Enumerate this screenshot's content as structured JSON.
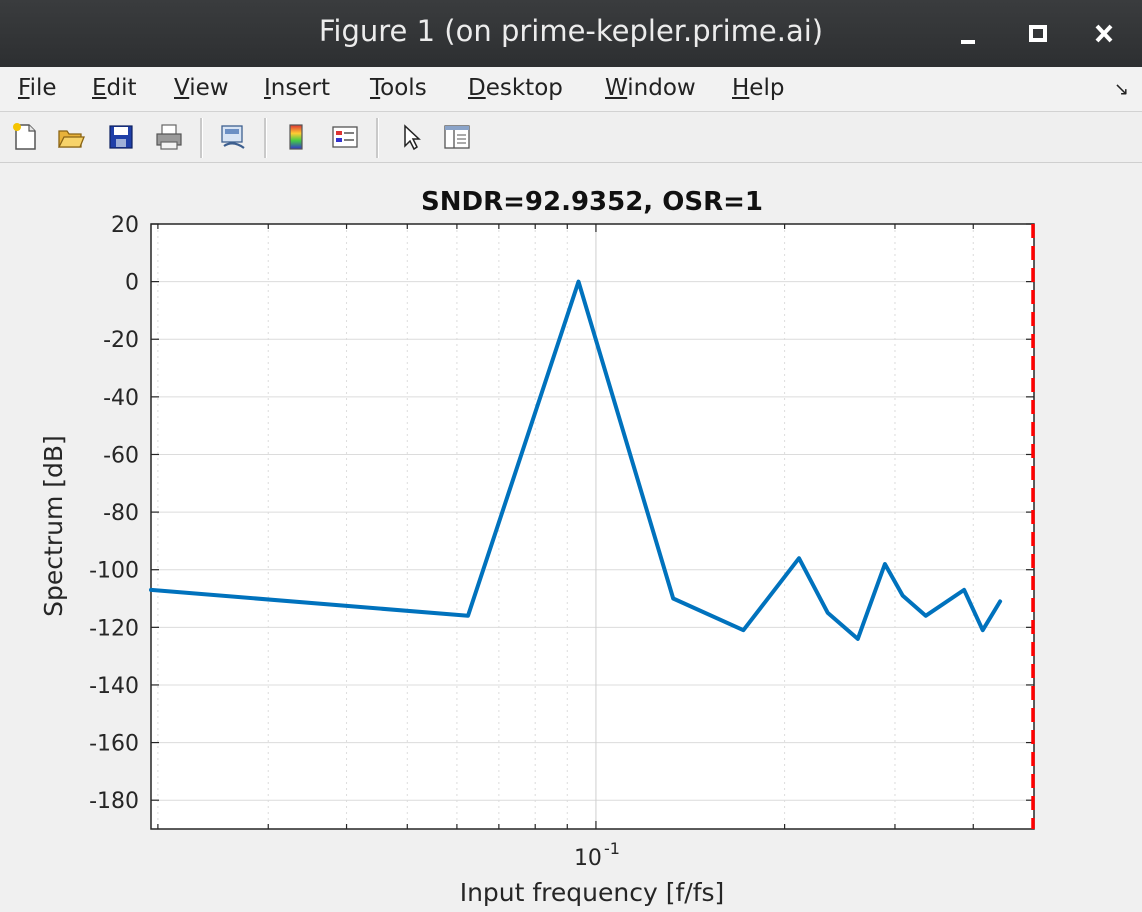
{
  "window": {
    "title": "Figure 1 (on prime-kepler.prime.ai)",
    "controls": {
      "minimize": "_",
      "maximize": "▫",
      "close": "✕"
    }
  },
  "menubar": {
    "items": [
      {
        "label": "File",
        "mnemonic": "F",
        "rest": "ile"
      },
      {
        "label": "Edit",
        "mnemonic": "E",
        "rest": "dit"
      },
      {
        "label": "View",
        "mnemonic": "V",
        "rest": "iew"
      },
      {
        "label": "Insert",
        "mnemonic": "I",
        "rest": "nsert"
      },
      {
        "label": "Tools",
        "mnemonic": "T",
        "rest": "ools"
      },
      {
        "label": "Desktop",
        "mnemonic": "D",
        "rest": "esktop"
      },
      {
        "label": "Window",
        "mnemonic": "W",
        "rest": "indow"
      },
      {
        "label": "Help",
        "mnemonic": "H",
        "rest": "elp"
      }
    ],
    "dock_arrow": "↘"
  },
  "toolbar": {
    "buttons": [
      "new-figure-icon",
      "open-file-icon",
      "save-icon",
      "print-icon",
      "link-plot-icon",
      "colorbar-icon",
      "legend-icon",
      "pointer-icon",
      "property-editor-icon"
    ]
  },
  "colors": {
    "line": "#0072bd",
    "marker_line": "#ff0000",
    "grid": "#dcdcdc",
    "axes_bg": "#ffffff"
  },
  "chart_data": {
    "type": "line",
    "title": "SNDR=92.9352, OSR=1",
    "xlabel": "Input frequency [f/fs]",
    "ylabel": "Spectrum [dB]",
    "xscale": "log",
    "xlim": [
      0.0195,
      0.5
    ],
    "ylim": [
      -190,
      20
    ],
    "yticks": [
      20,
      0,
      -20,
      -40,
      -60,
      -80,
      -100,
      -120,
      -140,
      -160,
      -180
    ],
    "xtick_label": {
      "base": "10",
      "exponent": "-1",
      "value": 0.1
    },
    "grid": true,
    "series": [
      {
        "x": [
          0.0195,
          0.0625,
          0.0938,
          0.1328,
          0.1719,
          0.2109,
          0.2344,
          0.2617,
          0.2891,
          0.3086,
          0.3359,
          0.3867,
          0.4141,
          0.4414
        ],
        "y": [
          -107,
          -116,
          0,
          -110,
          -121,
          -96,
          -115,
          -124,
          -98,
          -109,
          -116,
          -107,
          -121,
          -111
        ]
      }
    ],
    "vline": {
      "x": 0.5,
      "style": "dashed"
    }
  }
}
